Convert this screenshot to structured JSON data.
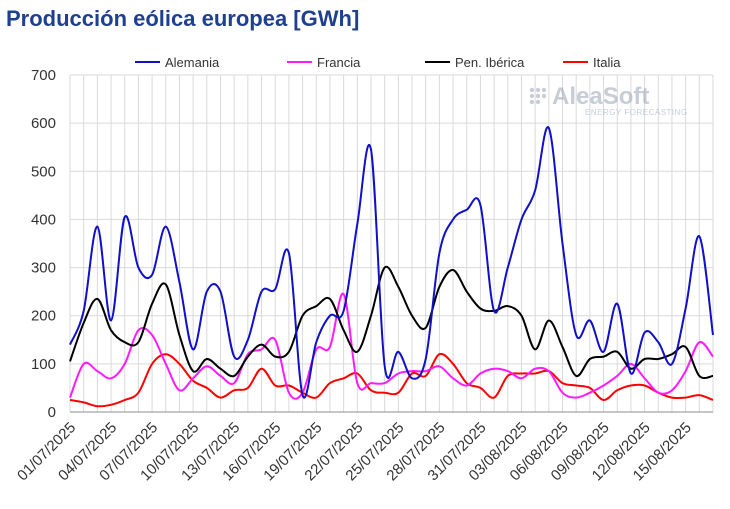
{
  "title": "Producción eólica europea [GWh]",
  "watermark": {
    "brand": "AleaSoft",
    "tagline": "ENERGY FORECASTING"
  },
  "chart_data": {
    "type": "line",
    "title": "Producción eólica europea [GWh]",
    "ylim": [
      0,
      700
    ],
    "yticks": [
      0,
      100,
      200,
      300,
      400,
      500,
      600,
      700
    ],
    "grid": true,
    "legend_position": "top",
    "x": [
      "01/07/2025",
      "02/07/2025",
      "03/07/2025",
      "04/07/2025",
      "05/07/2025",
      "06/07/2025",
      "07/07/2025",
      "08/07/2025",
      "09/07/2025",
      "10/07/2025",
      "11/07/2025",
      "12/07/2025",
      "13/07/2025",
      "14/07/2025",
      "15/07/2025",
      "16/07/2025",
      "17/07/2025",
      "18/07/2025",
      "19/07/2025",
      "20/07/2025",
      "21/07/2025",
      "22/07/2025",
      "23/07/2025",
      "24/07/2025",
      "25/07/2025",
      "26/07/2025",
      "27/07/2025",
      "28/07/2025",
      "29/07/2025",
      "30/07/2025",
      "31/07/2025",
      "01/08/2025",
      "02/08/2025",
      "03/08/2025",
      "04/08/2025",
      "05/08/2025",
      "06/08/2025",
      "07/08/2025",
      "08/08/2025",
      "09/08/2025",
      "10/08/2025",
      "11/08/2025",
      "12/08/2025",
      "13/08/2025",
      "14/08/2025",
      "15/08/2025",
      "16/08/2025",
      "17/08/2025"
    ],
    "x_tick_labels": [
      "01/07/2025",
      "04/07/2025",
      "07/07/2025",
      "10/07/2025",
      "13/07/2025",
      "16/07/2025",
      "19/07/2025",
      "22/07/2025",
      "25/07/2025",
      "28/07/2025",
      "31/07/2025",
      "03/08/2025",
      "06/08/2025",
      "09/08/2025",
      "12/08/2025",
      "15/08/2025"
    ],
    "series": [
      {
        "name": "Alemania",
        "color": "#1010c8",
        "values": [
          140,
          210,
          385,
          190,
          405,
          300,
          285,
          385,
          270,
          130,
          250,
          250,
          115,
          150,
          250,
          255,
          330,
          35,
          145,
          200,
          210,
          390,
          545,
          95,
          125,
          70,
          110,
          330,
          400,
          420,
          430,
          210,
          300,
          400,
          460,
          590,
          350,
          160,
          190,
          125,
          225,
          80,
          165,
          145,
          100,
          215,
          365,
          160
        ]
      },
      {
        "name": "Francia",
        "color": "#ff1aff",
        "values": [
          30,
          100,
          85,
          70,
          100,
          170,
          160,
          100,
          45,
          70,
          95,
          75,
          60,
          120,
          130,
          150,
          40,
          40,
          130,
          135,
          245,
          60,
          60,
          60,
          80,
          85,
          85,
          95,
          70,
          55,
          80,
          90,
          85,
          70,
          90,
          85,
          40,
          30,
          40,
          55,
          75,
          100,
          70,
          40,
          45,
          85,
          145,
          115
        ]
      },
      {
        "name": "Pen. Ibérica",
        "color": "#000000",
        "values": [
          105,
          185,
          235,
          170,
          145,
          145,
          225,
          265,
          160,
          85,
          110,
          90,
          75,
          115,
          140,
          115,
          125,
          200,
          220,
          235,
          170,
          125,
          200,
          300,
          260,
          200,
          175,
          260,
          295,
          250,
          215,
          210,
          220,
          200,
          130,
          190,
          135,
          75,
          110,
          115,
          125,
          90,
          110,
          110,
          120,
          135,
          75,
          75
        ]
      },
      {
        "name": "Italia",
        "color": "#ff0000",
        "values": [
          25,
          20,
          12,
          15,
          25,
          40,
          100,
          120,
          100,
          65,
          50,
          30,
          45,
          50,
          90,
          55,
          55,
          40,
          30,
          60,
          70,
          80,
          45,
          40,
          40,
          80,
          75,
          120,
          100,
          60,
          50,
          30,
          75,
          80,
          80,
          85,
          60,
          55,
          50,
          25,
          45,
          55,
          55,
          40,
          30,
          30,
          35,
          25
        ]
      }
    ]
  }
}
